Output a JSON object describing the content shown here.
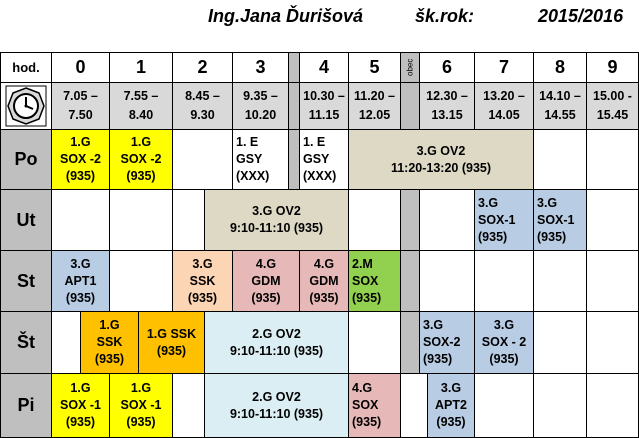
{
  "header": {
    "name": "Ing.Jana Ďurišová",
    "school_year_label": "šk.rok:",
    "school_year": "2015/2016"
  },
  "columns": {
    "hod_label": "hod.",
    "obec_label": "obec",
    "hours": [
      "0",
      "1",
      "2",
      "3",
      "4",
      "5",
      "6",
      "7",
      "8",
      "9"
    ],
    "times": [
      [
        "7.05 –",
        "7.50"
      ],
      [
        "7.55 –",
        "8.40"
      ],
      [
        "8.45 –",
        "9.30"
      ],
      [
        "9.35 –",
        "10.20"
      ],
      [
        "10.30 –",
        "11.15"
      ],
      [
        "11.20 –",
        "12.05"
      ],
      [
        "12.30 –",
        "13.15"
      ],
      [
        "13.20 –",
        "14.05"
      ],
      [
        "14.10 –",
        "14.55"
      ],
      [
        "15.00 -",
        "15.45"
      ]
    ]
  },
  "days": [
    "Po",
    "Ut",
    "St",
    "Št",
    "Pi"
  ],
  "lessons": {
    "po_0": [
      "1.G",
      "SOX -2",
      "(935)"
    ],
    "po_1": [
      "1.G",
      "SOX -2",
      "(935)"
    ],
    "po_3": [
      "1. E",
      "GSY",
      "(XXX)"
    ],
    "po_4": [
      "1. E",
      "GSY",
      "(XXX)"
    ],
    "po_5_6": [
      "3.G OV2",
      "11:20-13:20 (935)"
    ],
    "ut_2_4": [
      "3.G OV2",
      "9:10-11:10 (935)"
    ],
    "ut_7": [
      "3.G",
      "SOX-1",
      "(935)"
    ],
    "ut_8": [
      "3.G",
      "SOX-1",
      "(935)"
    ],
    "st_0": [
      "3.G",
      "APT1",
      "(935)"
    ],
    "st_2": [
      "3.G",
      "SSK",
      "(935)"
    ],
    "st_3": [
      "4.G",
      "GDM",
      "(935)"
    ],
    "st_4": [
      "4.G",
      "GDM",
      "(935)"
    ],
    "st_5": [
      "2.M",
      "SOX",
      "(935)"
    ],
    "stv_0": [
      "1.G",
      "SSK",
      "(935)"
    ],
    "stv_1": [
      "1.G SSK",
      "(935)"
    ],
    "stv_2_4": [
      "2.G OV2",
      "9:10-11:10 (935)"
    ],
    "stv_6": [
      "3.G",
      "SOX-2",
      "(935)"
    ],
    "stv_7": [
      "3.G",
      "SOX - 2",
      "(935)"
    ],
    "pi_0": [
      "1.G",
      "SOX -1",
      "(935)"
    ],
    "pi_1": [
      "1.G",
      "SOX -1",
      "(935)"
    ],
    "pi_2_4": [
      "2.G OV2",
      "9:10-11:10 (935)"
    ],
    "pi_5": [
      "4.G",
      "SOX",
      "(935)"
    ],
    "pi_6": [
      "3.G",
      "APT2",
      "(935)"
    ]
  },
  "colors": {
    "yellow": "#ffff00",
    "blue": "#b8cce4",
    "beige": "#ddd9c4",
    "peach": "#fcd5b4",
    "rose": "#e6b9b8",
    "green": "#92d050",
    "orange": "#ffc000",
    "lightblue": "#dbeef3",
    "gray": "#bfbfbf"
  },
  "icons": {
    "clock": "clock-icon"
  }
}
